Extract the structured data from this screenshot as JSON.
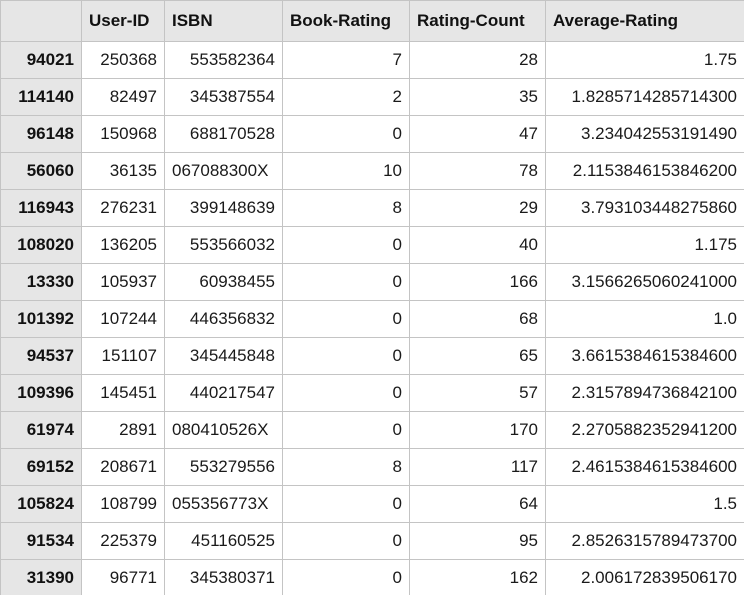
{
  "columns": [
    "",
    "User-ID",
    "ISBN",
    "Book-Rating",
    "Rating-Count",
    "Average-Rating"
  ],
  "rows": [
    {
      "index": "94021",
      "user_id": "250368",
      "isbn": "553582364",
      "book_rating": "7",
      "rating_count": "28",
      "average_rating": "1.75"
    },
    {
      "index": "114140",
      "user_id": "82497",
      "isbn": "345387554",
      "book_rating": "2",
      "rating_count": "35",
      "average_rating": "1.8285714285714300"
    },
    {
      "index": "96148",
      "user_id": "150968",
      "isbn": "688170528",
      "book_rating": "0",
      "rating_count": "47",
      "average_rating": "3.234042553191490"
    },
    {
      "index": "56060",
      "user_id": "36135",
      "isbn": "067088300X",
      "book_rating": "10",
      "rating_count": "78",
      "average_rating": "2.1153846153846200"
    },
    {
      "index": "116943",
      "user_id": "276231",
      "isbn": "399148639",
      "book_rating": "8",
      "rating_count": "29",
      "average_rating": "3.793103448275860"
    },
    {
      "index": "108020",
      "user_id": "136205",
      "isbn": "553566032",
      "book_rating": "0",
      "rating_count": "40",
      "average_rating": "1.175"
    },
    {
      "index": "13330",
      "user_id": "105937",
      "isbn": "60938455",
      "book_rating": "0",
      "rating_count": "166",
      "average_rating": "3.1566265060241000"
    },
    {
      "index": "101392",
      "user_id": "107244",
      "isbn": "446356832",
      "book_rating": "0",
      "rating_count": "68",
      "average_rating": "1.0"
    },
    {
      "index": "94537",
      "user_id": "151107",
      "isbn": "345445848",
      "book_rating": "0",
      "rating_count": "65",
      "average_rating": "3.6615384615384600"
    },
    {
      "index": "109396",
      "user_id": "145451",
      "isbn": "440217547",
      "book_rating": "0",
      "rating_count": "57",
      "average_rating": "2.3157894736842100"
    },
    {
      "index": "61974",
      "user_id": "2891",
      "isbn": "080410526X",
      "book_rating": "0",
      "rating_count": "170",
      "average_rating": "2.2705882352941200"
    },
    {
      "index": "69152",
      "user_id": "208671",
      "isbn": "553279556",
      "book_rating": "8",
      "rating_count": "117",
      "average_rating": "2.4615384615384600"
    },
    {
      "index": "105824",
      "user_id": "108799",
      "isbn": "055356773X",
      "book_rating": "0",
      "rating_count": "64",
      "average_rating": "1.5"
    },
    {
      "index": "91534",
      "user_id": "225379",
      "isbn": "451160525",
      "book_rating": "0",
      "rating_count": "95",
      "average_rating": "2.8526315789473700"
    },
    {
      "index": "31390",
      "user_id": "96771",
      "isbn": "345380371",
      "book_rating": "0",
      "rating_count": "162",
      "average_rating": "2.006172839506170"
    }
  ]
}
